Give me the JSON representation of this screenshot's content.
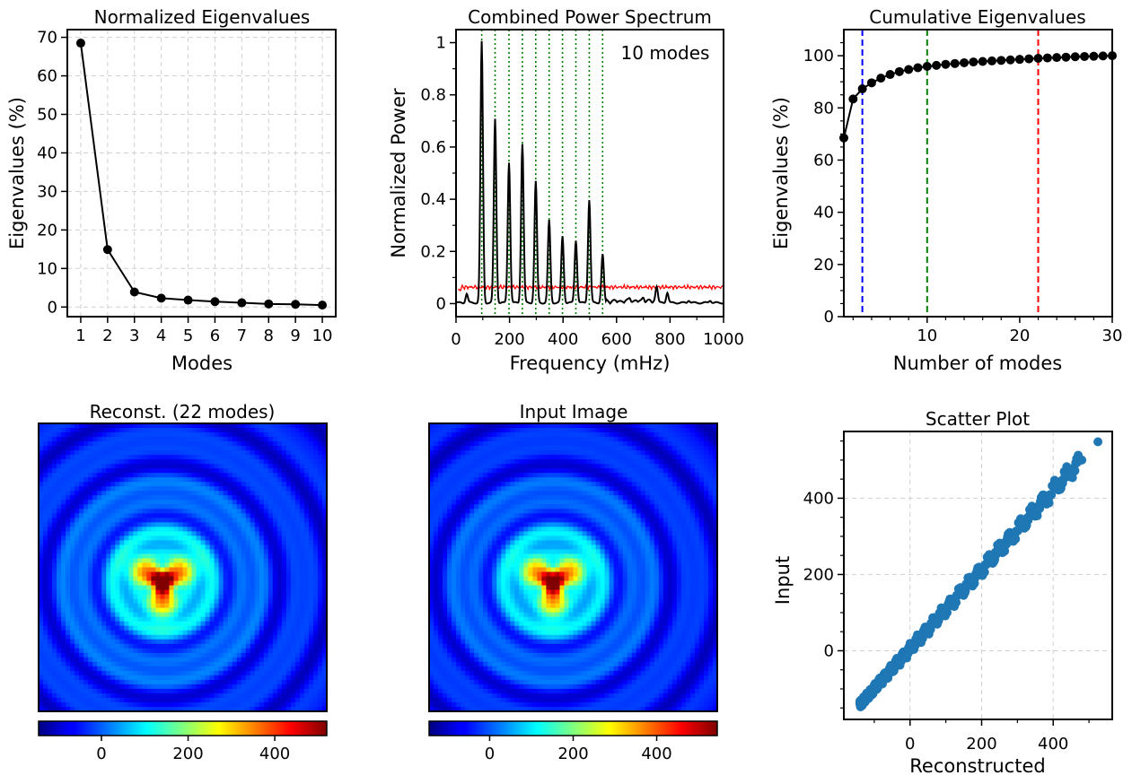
{
  "chart_data": [
    {
      "type": "line",
      "title": "Normalized Eigenvalues",
      "xlabel": "Modes",
      "ylabel": "Eigenvalues (%)",
      "xlim": [
        0.5,
        10.5
      ],
      "ylim": [
        -2.5,
        72
      ],
      "grid": true,
      "x": [
        1,
        2,
        3,
        4,
        5,
        6,
        7,
        8,
        9,
        10
      ],
      "xticks": [
        1,
        2,
        3,
        4,
        5,
        6,
        7,
        8,
        9,
        10
      ],
      "yticks": [
        0,
        10,
        20,
        30,
        40,
        50,
        60,
        70
      ],
      "series": [
        {
          "name": "eigenvalues",
          "color": "#000000",
          "values": [
            68.5,
            14.9,
            3.9,
            2.3,
            1.8,
            1.4,
            1.1,
            0.8,
            0.7,
            0.5
          ]
        }
      ]
    },
    {
      "type": "line",
      "title": "Combined Power Spectrum",
      "xlabel": "Frequency (mHz)",
      "ylabel": "Normalized Power",
      "xlim": [
        0,
        1000
      ],
      "ylim": [
        -0.05,
        1.05
      ],
      "xticks": [
        0,
        200,
        400,
        600,
        800,
        1000
      ],
      "yticks": [
        0.0,
        0.2,
        0.4,
        0.6,
        0.8,
        1.0
      ],
      "annotation": "10 modes",
      "mode_frequencies": [
        96,
        146,
        198,
        248,
        298,
        348,
        398,
        448,
        498,
        548
      ],
      "peak_heights": [
        1.0,
        0.705,
        0.54,
        0.61,
        0.465,
        0.315,
        0.255,
        0.24,
        0.395,
        0.185
      ],
      "small_peaks": [
        [
          40,
          0.035
        ],
        [
          650,
          0.012
        ],
        [
          700,
          0.015
        ],
        [
          750,
          0.055
        ],
        [
          790,
          0.04
        ],
        [
          870,
          0.01
        ],
        [
          950,
          0.01
        ]
      ],
      "series": [
        {
          "name": "power spectrum",
          "color": "#000000"
        },
        {
          "name": "significance level",
          "color": "#ff0000",
          "level": 0.063
        }
      ],
      "mode_line_color": "#008000"
    },
    {
      "type": "line",
      "title": "Cumulative Eigenvalues",
      "xlabel": "Number of modes",
      "ylabel": "Eigenvalues (%)",
      "xlim": [
        1,
        30
      ],
      "ylim": [
        0,
        110
      ],
      "xticks": [
        10,
        20,
        30
      ],
      "yticks": [
        0,
        20,
        40,
        60,
        80,
        100
      ],
      "x": [
        1,
        2,
        3,
        4,
        5,
        6,
        7,
        8,
        9,
        10,
        11,
        12,
        13,
        14,
        15,
        16,
        17,
        18,
        19,
        20,
        21,
        22,
        23,
        24,
        25,
        26,
        27,
        28,
        29,
        30
      ],
      "series": [
        {
          "name": "cumulative",
          "color": "#000000",
          "values": [
            68.5,
            83.4,
            87.3,
            89.6,
            91.4,
            92.8,
            93.9,
            94.7,
            95.4,
            95.9,
            96.3,
            96.7,
            97.0,
            97.3,
            97.6,
            97.8,
            98.0,
            98.2,
            98.4,
            98.6,
            98.8,
            99.0,
            99.15,
            99.3,
            99.45,
            99.6,
            99.7,
            99.8,
            99.9,
            100.0
          ]
        }
      ],
      "vlines": [
        {
          "x": 3,
          "color": "#0000ff"
        },
        {
          "x": 10,
          "color": "#008000"
        },
        {
          "x": 22,
          "color": "#ff0000"
        }
      ]
    },
    {
      "type": "heatmap",
      "title": "Reconst. (22 modes)",
      "colormap": "jet",
      "colorbar_range": [
        -145,
        520
      ],
      "colorbar_ticks": [
        0,
        200,
        400
      ]
    },
    {
      "type": "heatmap",
      "title": "Input Image",
      "colormap": "jet",
      "colorbar_range": [
        -145,
        545
      ],
      "colorbar_ticks": [
        0,
        200,
        400
      ]
    },
    {
      "type": "scatter",
      "title": "Scatter Plot",
      "xlabel": "Reconstructed",
      "ylabel": "Input",
      "xlim": [
        -185,
        565
      ],
      "ylim": [
        -180,
        575
      ],
      "xticks": [
        0,
        200,
        400
      ],
      "yticks": [
        0,
        200,
        400
      ],
      "grid": true,
      "color": "#1f77b4",
      "x_range": [
        -140,
        525
      ],
      "outliers": [
        [
          480,
          500
        ],
        [
          525,
          548
        ]
      ]
    }
  ]
}
